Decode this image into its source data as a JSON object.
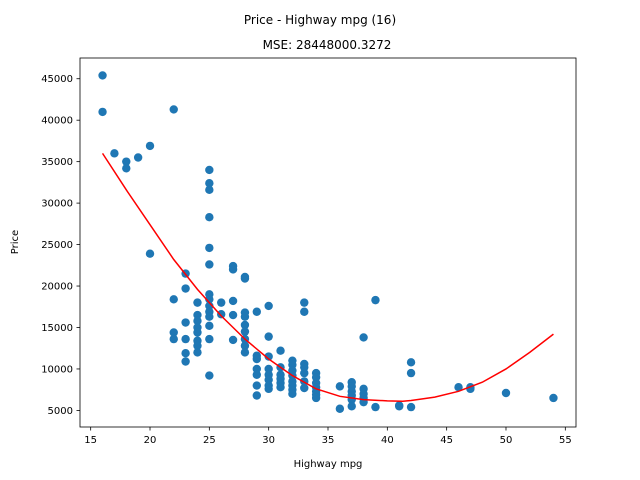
{
  "chart_data": {
    "type": "scatter",
    "suptitle": "Price - Highway mpg (16)",
    "title": "MSE: 28448000.3272",
    "xlabel": "Highway mpg",
    "ylabel": "Price",
    "xlim": [
      14.1,
      55.9
    ],
    "ylim": [
      3000,
      47500
    ],
    "xticks": [
      15,
      20,
      25,
      30,
      35,
      40,
      45,
      50,
      55
    ],
    "yticks": [
      5000,
      10000,
      15000,
      20000,
      25000,
      30000,
      35000,
      40000,
      45000
    ],
    "grid": false,
    "colors": {
      "points": "#1f77b4",
      "fit": "#ff0000"
    },
    "series": [
      {
        "type": "scatter",
        "points": [
          [
            16,
            45400
          ],
          [
            16,
            41000
          ],
          [
            17,
            36000
          ],
          [
            18,
            35000
          ],
          [
            18,
            34200
          ],
          [
            19,
            35500
          ],
          [
            20,
            36900
          ],
          [
            20,
            23900
          ],
          [
            22,
            41300
          ],
          [
            22,
            18400
          ],
          [
            22,
            14400
          ],
          [
            22,
            13600
          ],
          [
            23,
            21500
          ],
          [
            23,
            19700
          ],
          [
            23,
            15600
          ],
          [
            23,
            13600
          ],
          [
            23,
            11900
          ],
          [
            23,
            10900
          ],
          [
            24,
            18000
          ],
          [
            24,
            16500
          ],
          [
            24,
            15800
          ],
          [
            24,
            15000
          ],
          [
            24,
            14400
          ],
          [
            24,
            13400
          ],
          [
            24,
            12800
          ],
          [
            24,
            12000
          ],
          [
            25,
            34000
          ],
          [
            25,
            32400
          ],
          [
            25,
            31600
          ],
          [
            25,
            28300
          ],
          [
            25,
            24600
          ],
          [
            25,
            22600
          ],
          [
            25,
            19000
          ],
          [
            25,
            18400
          ],
          [
            25,
            17600
          ],
          [
            25,
            16900
          ],
          [
            25,
            16300
          ],
          [
            25,
            15200
          ],
          [
            25,
            13600
          ],
          [
            25,
            9200
          ],
          [
            26,
            18000
          ],
          [
            26,
            16600
          ],
          [
            27,
            22400
          ],
          [
            27,
            22000
          ],
          [
            27,
            18200
          ],
          [
            27,
            16500
          ],
          [
            27,
            13500
          ],
          [
            28,
            21100
          ],
          [
            28,
            20900
          ],
          [
            28,
            16800
          ],
          [
            28,
            16300
          ],
          [
            28,
            15300
          ],
          [
            28,
            14500
          ],
          [
            28,
            13600
          ],
          [
            28,
            12800
          ],
          [
            28,
            12000
          ],
          [
            29,
            16900
          ],
          [
            29,
            11600
          ],
          [
            29,
            11200
          ],
          [
            29,
            10000
          ],
          [
            29,
            9300
          ],
          [
            29,
            8000
          ],
          [
            29,
            6800
          ],
          [
            30,
            17600
          ],
          [
            30,
            13900
          ],
          [
            30,
            11500
          ],
          [
            30,
            10000
          ],
          [
            30,
            9300
          ],
          [
            30,
            8700
          ],
          [
            30,
            8000
          ],
          [
            30,
            7600
          ],
          [
            31,
            12200
          ],
          [
            31,
            10200
          ],
          [
            31,
            9300
          ],
          [
            31,
            8800
          ],
          [
            31,
            8300
          ],
          [
            31,
            7800
          ],
          [
            32,
            11000
          ],
          [
            32,
            10500
          ],
          [
            32,
            9800
          ],
          [
            32,
            9200
          ],
          [
            32,
            8500
          ],
          [
            32,
            8000
          ],
          [
            32,
            7500
          ],
          [
            32,
            7000
          ],
          [
            33,
            18000
          ],
          [
            33,
            16900
          ],
          [
            33,
            10600
          ],
          [
            33,
            10200
          ],
          [
            33,
            9500
          ],
          [
            33,
            8500
          ],
          [
            33,
            7700
          ],
          [
            34,
            9500
          ],
          [
            34,
            9000
          ],
          [
            34,
            8300
          ],
          [
            34,
            7800
          ],
          [
            34,
            7300
          ],
          [
            34,
            6900
          ],
          [
            34,
            6500
          ],
          [
            36,
            7900
          ],
          [
            36,
            5200
          ],
          [
            37,
            8400
          ],
          [
            37,
            7900
          ],
          [
            37,
            7300
          ],
          [
            37,
            6800
          ],
          [
            37,
            6300
          ],
          [
            37,
            5500
          ],
          [
            38,
            13800
          ],
          [
            38,
            7600
          ],
          [
            38,
            7000
          ],
          [
            38,
            6500
          ],
          [
            38,
            6000
          ],
          [
            39,
            18300
          ],
          [
            39,
            5400
          ],
          [
            41,
            5600
          ],
          [
            41,
            5500
          ],
          [
            42,
            10800
          ],
          [
            42,
            9500
          ],
          [
            42,
            5400
          ],
          [
            46,
            7800
          ],
          [
            47,
            7800
          ],
          [
            47,
            7600
          ],
          [
            50,
            7100
          ],
          [
            54,
            6500
          ]
        ]
      },
      {
        "type": "line",
        "x": [
          16,
          18,
          20,
          22,
          24,
          26,
          28,
          30,
          32,
          34,
          36,
          38,
          40,
          41.3,
          42,
          44,
          46,
          48,
          50,
          52,
          54
        ],
        "values": [
          36000,
          31600,
          27400,
          23200,
          19600,
          16400,
          13600,
          11200,
          9200,
          7600,
          6700,
          6300,
          6150,
          6100,
          6200,
          6600,
          7300,
          8400,
          10000,
          12000,
          14200
        ]
      }
    ]
  }
}
